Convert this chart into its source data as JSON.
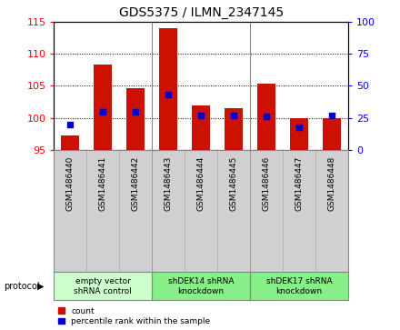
{
  "title": "GDS5375 / ILMN_2347145",
  "samples": [
    "GSM1486440",
    "GSM1486441",
    "GSM1486442",
    "GSM1486443",
    "GSM1486444",
    "GSM1486445",
    "GSM1486446",
    "GSM1486447",
    "GSM1486448"
  ],
  "counts": [
    97.3,
    108.3,
    104.7,
    114.0,
    102.0,
    101.5,
    105.3,
    100.0,
    100.0
  ],
  "percentiles": [
    20,
    30,
    30,
    43,
    27,
    27,
    26,
    18,
    27
  ],
  "ylim_left": [
    95,
    115
  ],
  "ylim_right": [
    0,
    100
  ],
  "yticks_left": [
    95,
    100,
    105,
    110,
    115
  ],
  "yticks_right": [
    0,
    25,
    50,
    75,
    100
  ],
  "bar_color": "#cc1100",
  "dot_color": "#0000cc",
  "bar_bottom": 95,
  "groups": [
    {
      "label": "empty vector\nshRNA control",
      "start": 0,
      "end": 3,
      "color": "#ccffcc"
    },
    {
      "label": "shDEK14 shRNA\nknockdown",
      "start": 3,
      "end": 6,
      "color": "#88ee88"
    },
    {
      "label": "shDEK17 shRNA\nknockdown",
      "start": 6,
      "end": 9,
      "color": "#88ee88"
    }
  ],
  "legend_items": [
    {
      "label": "count",
      "color": "#cc1100"
    },
    {
      "label": "percentile rank within the sample",
      "color": "#0000cc"
    }
  ],
  "protocol_label": "protocol",
  "xtick_bg_color": "#d0d0d0",
  "group_divider_color": "#888888"
}
